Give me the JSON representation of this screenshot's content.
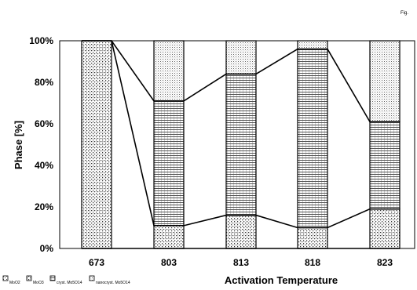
{
  "corner_mark": "Fig.",
  "chart_data": {
    "type": "bar",
    "stacked": true,
    "percent": true,
    "categories": [
      "673",
      "803",
      "813",
      "818",
      "823"
    ],
    "xlabel": "Activation Temperature",
    "ylabel": "Phase [%]",
    "ylim": [
      0,
      100
    ],
    "yticks": [
      "0%",
      "20%",
      "40%",
      "60%",
      "80%",
      "100%"
    ],
    "series": [
      {
        "name": "MoO2",
        "values": [
          0,
          0,
          0,
          0,
          0
        ]
      },
      {
        "name": "MoO3",
        "values": [
          100,
          11,
          16,
          10,
          19
        ]
      },
      {
        "name": "cryst. Mo5O14",
        "values": [
          0,
          60,
          68,
          86,
          42
        ]
      },
      {
        "name": "nanocryst. Mo5O14",
        "values": [
          0,
          29,
          16,
          4,
          39
        ]
      }
    ],
    "legend_position": "bottom-left",
    "grid": false
  }
}
